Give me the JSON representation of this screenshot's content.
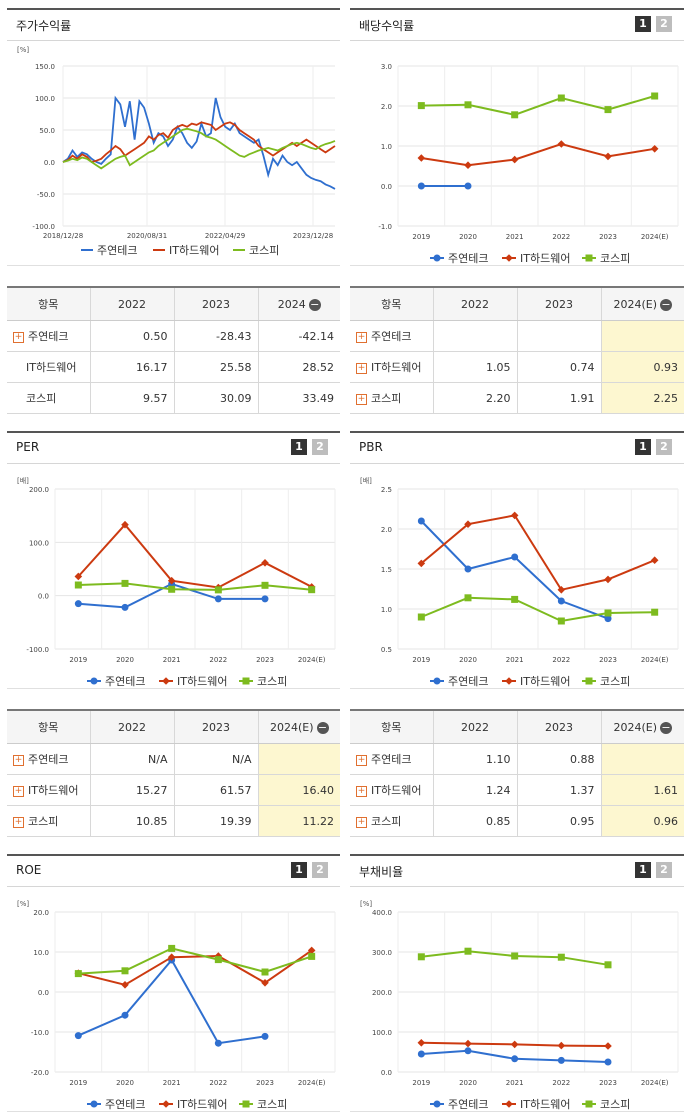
{
  "colors": {
    "s1": "#2f6fcf",
    "s2": "#cc3a10",
    "s3": "#7dbb1f"
  },
  "legend": [
    "주연테크",
    "IT하드웨어",
    "코스피"
  ],
  "page_buttons": [
    "1",
    "2"
  ],
  "charts": {
    "stock": {
      "title": "주가수익률",
      "unit": "[%]",
      "y_ticks": [
        "150.0",
        "100.0",
        "50.0",
        "0.0",
        "-50.0",
        "-100.0"
      ],
      "x_ticks": [
        "2018/12/28",
        "2020/08/31",
        "2022/04/29",
        "2023/12/28"
      ]
    },
    "dividend": {
      "title": "배당수익률",
      "y_ticks": [
        "3.0",
        "2.0",
        "1.0",
        "0.0",
        "-1.0"
      ],
      "x_ticks": [
        "2019",
        "2020",
        "2021",
        "2022",
        "2023",
        "2024(E)"
      ]
    },
    "per": {
      "title": "PER",
      "unit": "[배]",
      "y_ticks": [
        "200.0",
        "100.0",
        "0.0",
        "-100.0"
      ],
      "x_ticks": [
        "2019",
        "2020",
        "2021",
        "2022",
        "2023",
        "2024(E)"
      ]
    },
    "pbr": {
      "title": "PBR",
      "unit": "[배]",
      "y_ticks": [
        "2.5",
        "2.0",
        "1.5",
        "1.0",
        "0.5"
      ],
      "x_ticks": [
        "2019",
        "2020",
        "2021",
        "2022",
        "2023",
        "2024(E)"
      ]
    },
    "roe": {
      "title": "ROE",
      "unit": "[%]",
      "y_ticks": [
        "20.0",
        "10.0",
        "0.0",
        "-10.0",
        "-20.0"
      ],
      "x_ticks": [
        "2019",
        "2020",
        "2021",
        "2022",
        "2023",
        "2024(E)"
      ]
    },
    "debt": {
      "title": "부채비율",
      "unit": "[%]",
      "y_ticks": [
        "400.0",
        "300.0",
        "200.0",
        "100.0",
        "0.0"
      ],
      "x_ticks": [
        "2019",
        "2020",
        "2021",
        "2022",
        "2023",
        "2024(E)"
      ]
    }
  },
  "tables": {
    "stock": {
      "head": [
        "항목",
        "2022",
        "2023",
        "2024"
      ],
      "rows": [
        [
          "주연테크",
          "0.50",
          "-28.43",
          "-42.14"
        ],
        [
          "IT하드웨어",
          "16.17",
          "25.58",
          "28.52"
        ],
        [
          "코스피",
          "9.57",
          "30.09",
          "33.49"
        ]
      ]
    },
    "dividend": {
      "head": [
        "항목",
        "2022",
        "2023",
        "2024(E)"
      ],
      "rows": [
        [
          "주연테크",
          "",
          "",
          ""
        ],
        [
          "IT하드웨어",
          "1.05",
          "0.74",
          "0.93"
        ],
        [
          "코스피",
          "2.20",
          "1.91",
          "2.25"
        ]
      ]
    },
    "per": {
      "head": [
        "항목",
        "2022",
        "2023",
        "2024(E)"
      ],
      "rows": [
        [
          "주연테크",
          "N/A",
          "N/A",
          ""
        ],
        [
          "IT하드웨어",
          "15.27",
          "61.57",
          "16.40"
        ],
        [
          "코스피",
          "10.85",
          "19.39",
          "11.22"
        ]
      ]
    },
    "pbr": {
      "head": [
        "항목",
        "2022",
        "2023",
        "2024(E)"
      ],
      "rows": [
        [
          "주연테크",
          "1.10",
          "0.88",
          ""
        ],
        [
          "IT하드웨어",
          "1.24",
          "1.37",
          "1.61"
        ],
        [
          "코스피",
          "0.85",
          "0.95",
          "0.96"
        ]
      ]
    }
  },
  "chart_data": [
    {
      "type": "line",
      "title": "주가수익률",
      "ylabel": "[%]",
      "ylim": [
        -100,
        150
      ],
      "x_ticks": [
        "2018/12/28",
        "2020/08/31",
        "2022/04/29",
        "2023/12/28"
      ],
      "series": [
        {
          "name": "주연테크",
          "values": [
            0,
            5,
            18,
            8,
            15,
            12,
            5,
            0,
            -3,
            5,
            12,
            100,
            90,
            55,
            95,
            35,
            95,
            85,
            60,
            30,
            45,
            40,
            25,
            35,
            55,
            45,
            30,
            22,
            32,
            60,
            40,
            45,
            100,
            70,
            55,
            50,
            60,
            45,
            40,
            35,
            30,
            35,
            10,
            -20,
            5,
            -5,
            10,
            0,
            -5,
            0,
            -10,
            -20,
            -25,
            -28,
            -30,
            -35,
            -38,
            -42
          ]
        },
        {
          "name": "IT하드웨어",
          "values": [
            0,
            3,
            10,
            5,
            12,
            8,
            0,
            2,
            5,
            12,
            18,
            25,
            20,
            10,
            15,
            20,
            25,
            30,
            40,
            35,
            42,
            45,
            38,
            50,
            55,
            58,
            55,
            60,
            58,
            62,
            60,
            58,
            50,
            55,
            60,
            62,
            58,
            50,
            45,
            40,
            35,
            25,
            20,
            15,
            10,
            15,
            20,
            25,
            30,
            25,
            30,
            35,
            30,
            25,
            20,
            15,
            20,
            25
          ]
        },
        {
          "name": "코스피",
          "values": [
            0,
            2,
            5,
            3,
            7,
            5,
            0,
            -5,
            -10,
            -5,
            0,
            5,
            8,
            10,
            -5,
            0,
            5,
            10,
            15,
            18,
            25,
            30,
            35,
            40,
            45,
            50,
            52,
            50,
            48,
            45,
            40,
            38,
            35,
            30,
            25,
            20,
            15,
            10,
            8,
            12,
            15,
            18,
            20,
            22,
            20,
            18,
            22,
            25,
            28,
            30,
            28,
            25,
            22,
            20,
            25,
            28,
            30,
            33
          ]
        }
      ]
    },
    {
      "type": "line",
      "title": "배당수익률",
      "ylim": [
        -1,
        3
      ],
      "categories": [
        "2019",
        "2020",
        "2021",
        "2022",
        "2023",
        "2024(E)"
      ],
      "series": [
        {
          "name": "주연테크",
          "values": [
            0,
            0,
            null,
            null,
            null,
            null
          ]
        },
        {
          "name": "IT하드웨어",
          "values": [
            0.7,
            0.52,
            0.66,
            1.05,
            0.74,
            0.93
          ]
        },
        {
          "name": "코스피",
          "values": [
            2.01,
            2.03,
            1.78,
            2.2,
            1.91,
            2.25
          ]
        }
      ]
    },
    {
      "type": "line",
      "title": "PER",
      "ylabel": "[배]",
      "ylim": [
        -100,
        200
      ],
      "categories": [
        "2019",
        "2020",
        "2021",
        "2022",
        "2023",
        "2024(E)"
      ],
      "series": [
        {
          "name": "주연테크",
          "values": [
            -15,
            -22,
            22,
            -6,
            -6,
            null
          ]
        },
        {
          "name": "IT하드웨어",
          "values": [
            36,
            133,
            28,
            15.27,
            61.57,
            16.4
          ]
        },
        {
          "name": "코스피",
          "values": [
            20,
            23,
            12,
            10.85,
            19.39,
            11.22
          ]
        }
      ]
    },
    {
      "type": "line",
      "title": "PBR",
      "ylabel": "[배]",
      "ylim": [
        0.5,
        2.5
      ],
      "categories": [
        "2019",
        "2020",
        "2021",
        "2022",
        "2023",
        "2024(E)"
      ],
      "series": [
        {
          "name": "주연테크",
          "values": [
            2.1,
            1.5,
            1.65,
            1.1,
            0.88,
            null
          ]
        },
        {
          "name": "IT하드웨어",
          "values": [
            1.57,
            2.06,
            2.17,
            1.24,
            1.37,
            1.61
          ]
        },
        {
          "name": "코스피",
          "values": [
            0.9,
            1.14,
            1.12,
            0.85,
            0.95,
            0.96
          ]
        }
      ]
    },
    {
      "type": "line",
      "title": "ROE",
      "ylabel": "[%]",
      "ylim": [
        -20,
        20
      ],
      "categories": [
        "2019",
        "2020",
        "2021",
        "2022",
        "2023",
        "2024(E)"
      ],
      "series": [
        {
          "name": "주연테크",
          "values": [
            -10.9,
            -5.8,
            8.0,
            -12.8,
            -11.1,
            null
          ]
        },
        {
          "name": "IT하드웨어",
          "values": [
            4.7,
            1.8,
            8.7,
            9.0,
            2.3,
            10.4
          ]
        },
        {
          "name": "코스피",
          "values": [
            4.6,
            5.3,
            10.9,
            8.1,
            5.0,
            8.9
          ]
        }
      ]
    },
    {
      "type": "line",
      "title": "부채비율",
      "ylabel": "[%]",
      "ylim": [
        0,
        400
      ],
      "categories": [
        "2019",
        "2020",
        "2021",
        "2022",
        "2023",
        "2024(E)"
      ],
      "series": [
        {
          "name": "주연테크",
          "values": [
            45,
            53,
            33,
            29,
            25,
            null
          ]
        },
        {
          "name": "IT하드웨어",
          "values": [
            73,
            71,
            69,
            66,
            65,
            null
          ]
        },
        {
          "name": "코스피",
          "values": [
            288,
            302,
            290,
            287,
            268,
            null
          ]
        }
      ]
    }
  ]
}
